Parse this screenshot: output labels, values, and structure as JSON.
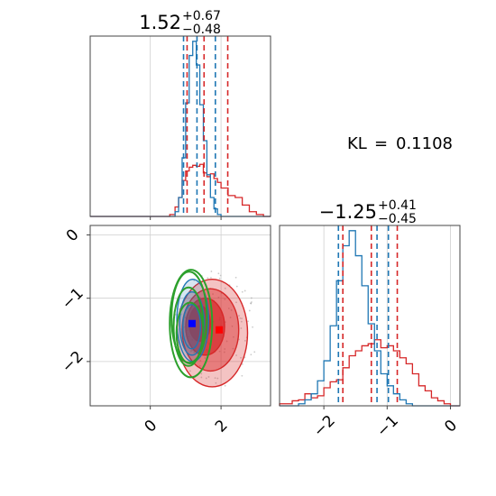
{
  "chart_data": {
    "type": "corner",
    "colors": {
      "reference": "#d62728",
      "approx": "#1f77b4",
      "contour": "#2ca02c",
      "marker_approx": "#0000ff",
      "marker_reference": "#ff0000"
    },
    "param1": {
      "title": {
        "median": "1.52",
        "plus": "+0.67",
        "minus": "−0.48"
      },
      "range": [
        -1.7,
        3.4
      ],
      "ticks": [
        {
          "value": 0,
          "label": "0"
        },
        {
          "value": 2,
          "label": "2"
        }
      ],
      "reference_quantiles": [
        1.04,
        1.52,
        2.19
      ],
      "approx_quantiles": [
        0.94,
        1.32,
        1.84
      ],
      "hist_bins": [
        -1.7,
        -1.45,
        -1.2,
        -0.95,
        -0.7,
        -0.45,
        -0.2,
        0.05,
        0.3,
        0.55,
        0.7,
        0.8,
        0.9,
        1.0,
        1.1,
        1.2,
        1.3,
        1.4,
        1.5,
        1.6,
        1.7,
        1.8,
        1.9,
        2.0,
        2.2,
        2.4,
        2.6,
        2.8,
        3.0,
        3.2,
        3.4
      ],
      "hist_reference": [
        0,
        0,
        0,
        0,
        0,
        0,
        0,
        0,
        0,
        2,
        10,
        20,
        38,
        48,
        52,
        54,
        53,
        55,
        46,
        42,
        45,
        40,
        36,
        30,
        22,
        20,
        12,
        5,
        2,
        0
      ],
      "hist_approx": [
        0,
        0,
        0,
        0,
        0,
        0,
        0,
        0,
        0,
        0,
        5,
        20,
        62,
        120,
        170,
        185,
        160,
        118,
        80,
        44,
        20,
        8,
        2,
        0,
        0,
        0,
        0,
        0,
        0,
        0
      ]
    },
    "param2": {
      "title": {
        "median": "−1.25",
        "plus": "+0.41",
        "minus": "−0.45"
      },
      "range": [
        -2.7,
        0.15
      ],
      "ticks": [
        {
          "value": 0,
          "label": "0"
        },
        {
          "value": -1,
          "label": "−1"
        },
        {
          "value": -2,
          "label": "−2"
        }
      ],
      "reference_quantiles": [
        -1.7,
        -1.25,
        -0.84
      ],
      "approx_quantiles": [
        -1.77,
        -1.16,
        -0.98
      ],
      "hist_bins": [
        -2.7,
        -2.6,
        -2.5,
        -2.4,
        -2.3,
        -2.2,
        -2.1,
        -2.0,
        -1.9,
        -1.8,
        -1.7,
        -1.6,
        -1.5,
        -1.4,
        -1.3,
        -1.2,
        -1.1,
        -1.0,
        -0.9,
        -0.8,
        -0.7,
        -0.6,
        -0.5,
        -0.4,
        -0.3,
        -0.2,
        -0.1,
        0.0,
        0.15
      ],
      "hist_reference": [
        2,
        2,
        5,
        6,
        12,
        8,
        10,
        18,
        24,
        26,
        38,
        50,
        55,
        60,
        62,
        66,
        58,
        60,
        55,
        48,
        42,
        32,
        20,
        15,
        8,
        5,
        2,
        0
      ],
      "hist_approx": [
        0,
        0,
        0,
        2,
        6,
        12,
        25,
        45,
        80,
        125,
        160,
        175,
        150,
        120,
        82,
        55,
        32,
        20,
        12,
        6,
        2,
        0,
        0,
        0,
        0,
        0,
        0,
        0
      ]
    },
    "joint": {
      "reference_center": [
        1.85,
        -1.5
      ],
      "approx_marker": [
        1.18,
        -1.4
      ],
      "reference_marker": [
        1.95,
        -1.5
      ],
      "reference_levels": [
        {
          "center": [
            1.75,
            -1.55
          ],
          "radii": [
            1.0,
            0.85
          ],
          "opacity": 0.28
        },
        {
          "center": [
            1.7,
            -1.5
          ],
          "radii": [
            0.8,
            0.65
          ],
          "opacity": 0.45
        },
        {
          "center": [
            1.55,
            -1.45
          ],
          "radii": [
            0.55,
            0.45
          ],
          "opacity": 0.7
        },
        {
          "center": [
            1.4,
            -1.4
          ],
          "radii": [
            0.3,
            0.28
          ],
          "opacity": 0.95
        }
      ],
      "approx_levels": [
        {
          "center": [
            1.2,
            -1.35
          ],
          "radii": [
            0.45,
            0.65
          ]
        },
        {
          "center": [
            1.18,
            -1.4
          ],
          "radii": [
            0.35,
            0.5
          ]
        },
        {
          "center": [
            1.17,
            -1.45
          ],
          "radii": [
            0.25,
            0.35
          ]
        }
      ],
      "contour_levels": [
        {
          "center": [
            1.15,
            -1.4
          ],
          "radii": [
            0.6,
            0.85
          ]
        },
        {
          "center": [
            1.1,
            -1.3
          ],
          "radii": [
            0.5,
            0.72
          ]
        },
        {
          "center": [
            1.08,
            -1.45
          ],
          "radii": [
            0.42,
            0.62
          ]
        },
        {
          "center": [
            1.12,
            -1.55
          ],
          "radii": [
            0.38,
            0.48
          ]
        }
      ]
    },
    "annotation": {
      "label": "KL",
      "value": "0.1108"
    }
  }
}
